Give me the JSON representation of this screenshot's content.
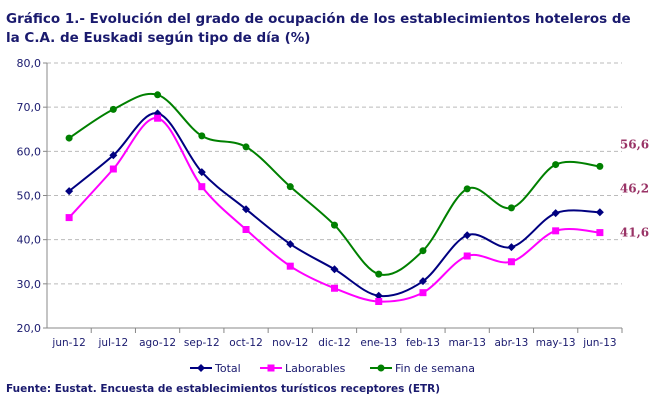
{
  "title": "Gráfico 1.-  Evolución del grado de ocupación de los establecimientos hoteleros de la C.A. de Euskadi según tipo de día (%)",
  "source": "Fuente: Eustat. Encuesta de establecimientos turísticos receptores (ETR)",
  "chart_data": {
    "type": "line",
    "title": "Gráfico 1.-  Evolución del grado de ocupación de los establecimientos hoteleros de la C.A. de Euskadi según tipo de día (%)",
    "categories": [
      "jun-12",
      "jul-12",
      "ago-12",
      "sep-12",
      "oct-12",
      "nov-12",
      "dic-12",
      "ene-13",
      "feb-13",
      "mar-13",
      "abr-13",
      "may-13",
      "jun-13"
    ],
    "ylim": [
      20,
      80
    ],
    "yticks": [
      "20,0",
      "30,0",
      "40,0",
      "50,0",
      "60,0",
      "70,0",
      "80,0"
    ],
    "grid": true,
    "legend": "bottom",
    "series": [
      {
        "name": "Total",
        "color": "#000080",
        "marker": "diamond",
        "values": [
          51.0,
          59.1,
          68.6,
          55.3,
          46.9,
          39.0,
          33.3,
          27.3,
          30.6,
          41.0,
          38.3,
          46.0,
          46.2
        ],
        "last_label": "46,2"
      },
      {
        "name": "Laborables",
        "color": "#ff00ff",
        "marker": "square",
        "values": [
          45.0,
          56.0,
          67.5,
          52.0,
          42.3,
          34.0,
          29.0,
          26.0,
          28.0,
          36.3,
          35.0,
          42.0,
          41.6
        ],
        "last_label": "41,6"
      },
      {
        "name": "Fin de semana",
        "color": "#008000",
        "marker": "circle",
        "values": [
          63.0,
          69.5,
          72.8,
          63.5,
          61.0,
          52.0,
          43.3,
          32.2,
          37.5,
          51.5,
          47.2,
          57.0,
          56.6
        ],
        "last_label": "56,6"
      }
    ]
  }
}
